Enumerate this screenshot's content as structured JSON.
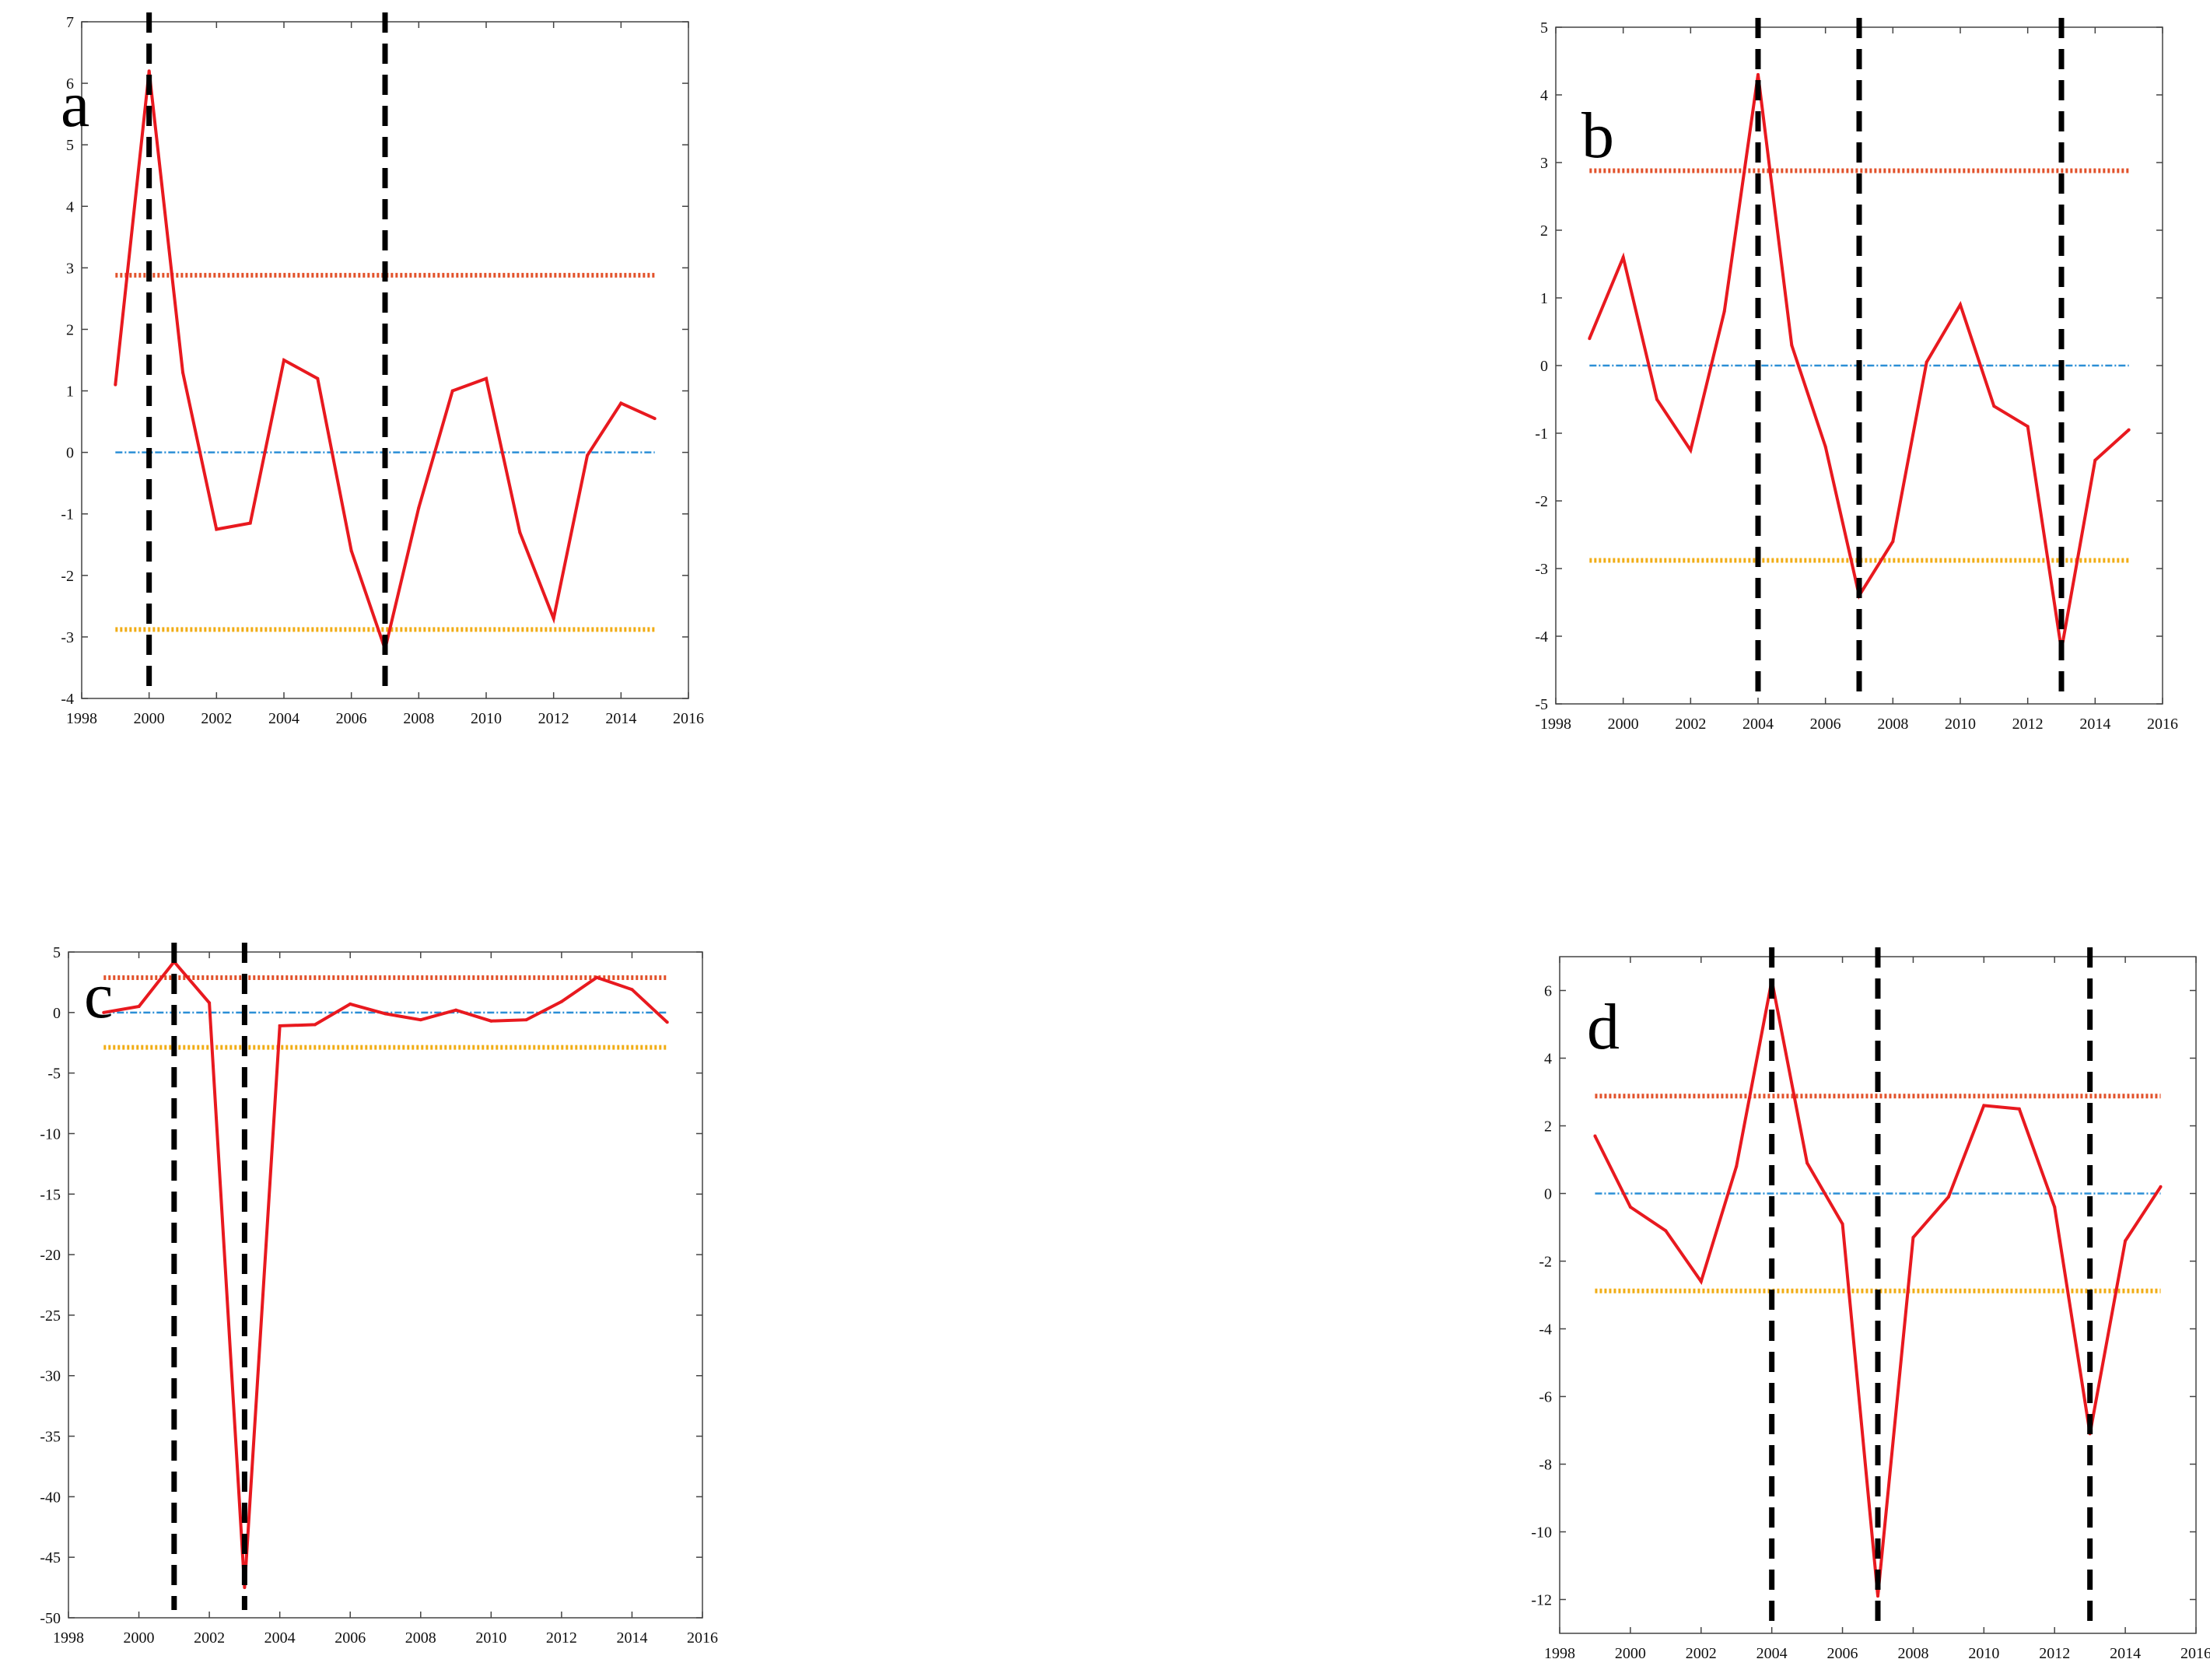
{
  "colors": {
    "series": "#e8191f",
    "upper_threshold": "#e2522b",
    "lower_threshold": "#f1ad16",
    "zero_line": "#2b8fd6",
    "marker": "#000000",
    "axis": "#444444"
  },
  "chart_data": [
    {
      "type": "line",
      "panel_label": "a",
      "x": [
        1999,
        2000,
        2001,
        2002,
        2003,
        2004,
        2005,
        2006,
        2007,
        2008,
        2009,
        2010,
        2011,
        2012,
        2013,
        2014,
        2015
      ],
      "series": [
        {
          "values": [
            1.1,
            6.2,
            1.3,
            -1.25,
            -1.15,
            1.5,
            1.2,
            -1.6,
            -3.2,
            -0.9,
            1.0,
            1.2,
            -1.3,
            -2.7,
            -0.05,
            0.8,
            0.55
          ]
        }
      ],
      "thresholds": {
        "upper": 2.88,
        "zero": 0,
        "lower": -2.88
      },
      "markers_x": [
        2000,
        2007
      ],
      "xlim": [
        1998,
        2016
      ],
      "ylim": [
        -4,
        7
      ],
      "xticks": [
        1998,
        2000,
        2002,
        2004,
        2006,
        2008,
        2010,
        2012,
        2014,
        2016
      ],
      "yticks": [
        -4,
        -3,
        -2,
        -1,
        0,
        1,
        2,
        3,
        4,
        5,
        6,
        7
      ],
      "grid": false
    },
    {
      "type": "line",
      "panel_label": "b",
      "x": [
        1999,
        2000,
        2001,
        2002,
        2003,
        2004,
        2005,
        2006,
        2007,
        2008,
        2009,
        2010,
        2011,
        2012,
        2013,
        2014,
        2015
      ],
      "series": [
        {
          "values": [
            0.4,
            1.6,
            -0.5,
            -1.25,
            0.8,
            4.3,
            0.3,
            -1.2,
            -3.4,
            -2.6,
            0.05,
            0.9,
            -0.6,
            -0.9,
            -4.2,
            -1.4,
            -0.95
          ]
        }
      ],
      "thresholds": {
        "upper": 2.88,
        "zero": 0,
        "lower": -2.88
      },
      "markers_x": [
        2004,
        2007,
        2013
      ],
      "xlim": [
        1998,
        2016
      ],
      "ylim": [
        -5,
        5
      ],
      "xticks": [
        1998,
        2000,
        2002,
        2004,
        2006,
        2008,
        2010,
        2012,
        2014,
        2016
      ],
      "yticks": [
        -5,
        -4,
        -3,
        -2,
        -1,
        0,
        1,
        2,
        3,
        4,
        5
      ],
      "grid": false
    },
    {
      "type": "line",
      "panel_label": "c",
      "x": [
        1999,
        2000,
        2001,
        2002,
        2003,
        2004,
        2005,
        2006,
        2007,
        2008,
        2009,
        2010,
        2011,
        2012,
        2013,
        2014,
        2015
      ],
      "series": [
        {
          "values": [
            0.0,
            0.5,
            4.2,
            0.8,
            -47.5,
            -1.1,
            -1.0,
            0.7,
            -0.1,
            -0.6,
            0.2,
            -0.7,
            -0.6,
            0.9,
            2.9,
            1.9,
            -0.8
          ]
        }
      ],
      "thresholds": {
        "upper": 2.88,
        "zero": 0,
        "lower": -2.88
      },
      "markers_x": [
        2001,
        2003
      ],
      "xlim": [
        1998,
        2016
      ],
      "ylim": [
        -50,
        5
      ],
      "xticks": [
        1998,
        2000,
        2002,
        2004,
        2006,
        2008,
        2010,
        2012,
        2014,
        2016
      ],
      "yticks": [
        -50,
        -45,
        -40,
        -35,
        -30,
        -25,
        -20,
        -15,
        -10,
        -5,
        0,
        5
      ],
      "grid": false
    },
    {
      "type": "line",
      "panel_label": "d",
      "x": [
        1999,
        2000,
        2001,
        2002,
        2003,
        2004,
        2005,
        2006,
        2007,
        2008,
        2009,
        2010,
        2011,
        2012,
        2013,
        2014,
        2015
      ],
      "series": [
        {
          "values": [
            1.7,
            -0.4,
            -1.1,
            -2.6,
            0.8,
            6.3,
            0.9,
            -0.9,
            -11.9,
            -1.3,
            -0.1,
            2.6,
            2.5,
            -0.4,
            -7.1,
            -1.4,
            0.2
          ]
        }
      ],
      "thresholds": {
        "upper": 2.88,
        "zero": 0,
        "lower": -2.88
      },
      "markers_x": [
        2004,
        2007,
        2013
      ],
      "xlim": [
        1998,
        2016
      ],
      "ylim": [
        -13,
        7
      ],
      "xticks": [
        1998,
        2000,
        2002,
        2004,
        2006,
        2008,
        2010,
        2012,
        2014,
        2016
      ],
      "yticks": [
        -12,
        -10,
        -8,
        -6,
        -4,
        -2,
        0,
        2,
        4,
        6
      ],
      "grid": false
    }
  ]
}
